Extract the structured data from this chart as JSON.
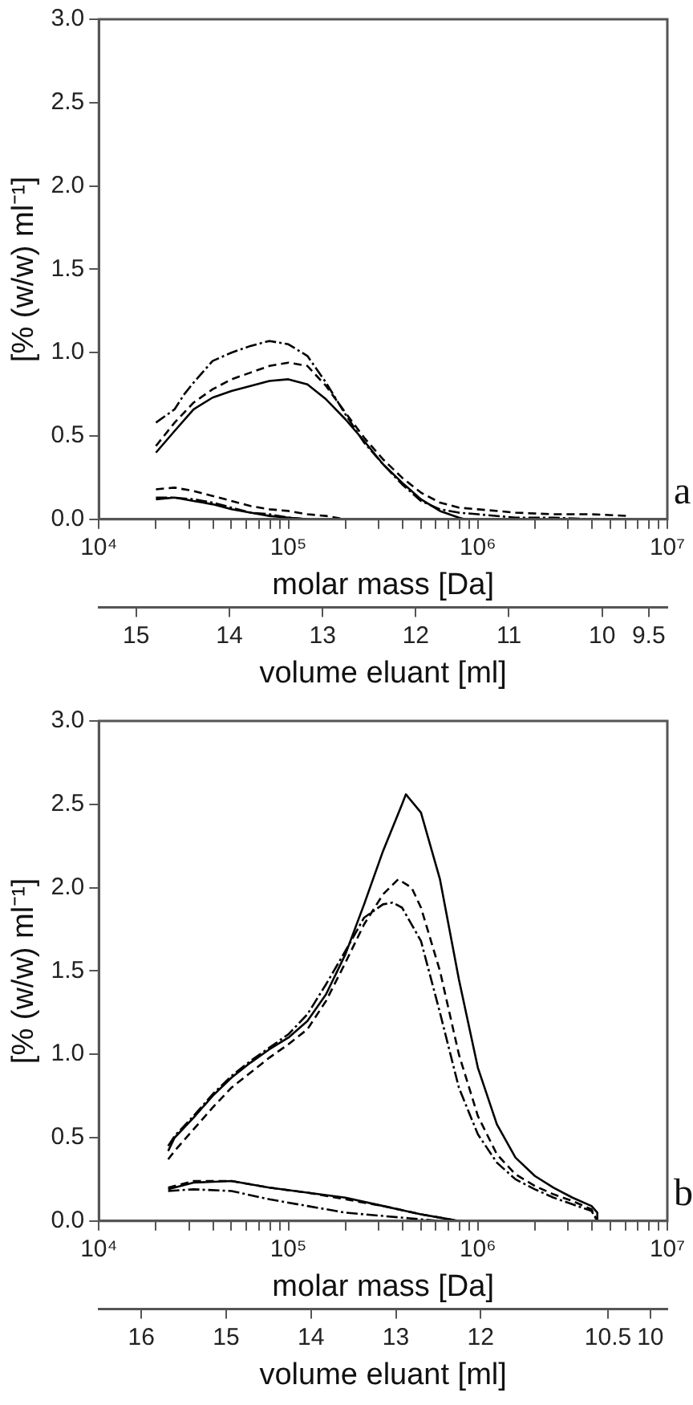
{
  "chart_data": [
    {
      "type": "line",
      "log": "x",
      "xlabel": "molar mass [Da]",
      "ylabel": "[% (w/w) ml⁻¹]",
      "x2label": "volume eluant [ml]",
      "annotations": [
        "a"
      ],
      "xlim": [
        10000,
        10000000
      ],
      "ylim": [
        0,
        3
      ],
      "xticks": [
        {
          "value": 10000,
          "label": "10⁴"
        },
        {
          "value": 20000,
          "label": null
        },
        {
          "value": 30000,
          "label": null
        },
        {
          "value": 40000,
          "label": null
        },
        {
          "value": 50000,
          "label": null
        },
        {
          "value": 60000,
          "label": null
        },
        {
          "value": 70000,
          "label": null
        },
        {
          "value": 80000,
          "label": null
        },
        {
          "value": 90000,
          "label": null
        },
        {
          "value": 100000,
          "label": "10⁵"
        },
        {
          "value": 200000,
          "label": null
        },
        {
          "value": 300000,
          "label": null
        },
        {
          "value": 400000,
          "label": null
        },
        {
          "value": 500000,
          "label": null
        },
        {
          "value": 600000,
          "label": null
        },
        {
          "value": 700000,
          "label": null
        },
        {
          "value": 800000,
          "label": null
        },
        {
          "value": 900000,
          "label": null
        },
        {
          "value": 1000000,
          "label": "10⁶"
        },
        {
          "value": 2000000,
          "label": null
        },
        {
          "value": 3000000,
          "label": null
        },
        {
          "value": 4000000,
          "label": null
        },
        {
          "value": 5000000,
          "label": null
        },
        {
          "value": 6000000,
          "label": null
        },
        {
          "value": 7000000,
          "label": null
        },
        {
          "value": 8000000,
          "label": null
        },
        {
          "value": 9000000,
          "label": null
        },
        {
          "value": 10000000,
          "label": "10⁷"
        }
      ],
      "yticks": [
        {
          "value": 0,
          "label": "0.0"
        },
        {
          "value": 0.5,
          "label": "0.5"
        },
        {
          "value": 1,
          "label": "1.0"
        },
        {
          "value": 1.5,
          "label": "1.5"
        },
        {
          "value": 2,
          "label": "2.0"
        },
        {
          "value": 2.5,
          "label": "2.5"
        },
        {
          "value": 3,
          "label": "3.0"
        }
      ],
      "x2lim": [
        15.4,
        9.3
      ],
      "x2ticks": [
        15,
        14,
        13,
        12,
        11,
        10,
        9.5
      ],
      "series": [
        {
          "color": "#000000",
          "line_style": "solid",
          "x": [
            20000,
            25100,
            31600,
            39800,
            50100,
            63100,
            79400,
            100000,
            126000,
            158000,
            200000,
            251000,
            316000,
            398000,
            501000,
            631000,
            794000,
            851000
          ],
          "values": [
            0.4,
            0.53,
            0.66,
            0.73,
            0.77,
            0.8,
            0.83,
            0.84,
            0.81,
            0.72,
            0.6,
            0.47,
            0.33,
            0.22,
            0.12,
            0.05,
            0.01,
            0
          ]
        },
        {
          "color": "#000000",
          "line_style": "dashed",
          "x": [
            20000,
            25100,
            31600,
            39800,
            50100,
            63100,
            79400,
            100000,
            126000,
            158000,
            200000,
            251000,
            316000,
            398000,
            501000,
            631000,
            794000,
            1000000,
            1580000,
            2510000,
            3980000,
            6310000
          ],
          "values": [
            0.44,
            0.58,
            0.7,
            0.78,
            0.84,
            0.88,
            0.92,
            0.94,
            0.92,
            0.8,
            0.64,
            0.49,
            0.36,
            0.25,
            0.16,
            0.1,
            0.07,
            0.06,
            0.04,
            0.03,
            0.03,
            0.02
          ]
        },
        {
          "color": "#000000",
          "line_style": "dashdot",
          "x": [
            20000,
            25100,
            28200,
            31600,
            39800,
            50100,
            63100,
            79400,
            100000,
            126000,
            158000,
            200000,
            251000,
            316000,
            398000,
            501000,
            631000,
            794000,
            1000000,
            1580000,
            2510000,
            3980000,
            6310000
          ],
          "values": [
            0.58,
            0.66,
            0.75,
            0.82,
            0.95,
            1.0,
            1.04,
            1.07,
            1.05,
            0.98,
            0.82,
            0.63,
            0.46,
            0.33,
            0.21,
            0.11,
            0.06,
            0.04,
            0.03,
            0.01,
            0.01,
            0,
            0
          ]
        },
        {
          "color": "#000000",
          "line_style": "dashed",
          "x": [
            20000,
            25100,
            31600,
            39800,
            50100,
            63100,
            79400,
            100000,
            126000,
            158000,
            200000
          ],
          "values": [
            0.18,
            0.19,
            0.17,
            0.14,
            0.11,
            0.08,
            0.06,
            0.05,
            0.03,
            0.02,
            0
          ]
        },
        {
          "color": "#000000",
          "line_style": "dashdot",
          "x": [
            20000,
            25100,
            31600,
            39800,
            50100,
            63100,
            79400,
            100000,
            126000
          ],
          "values": [
            0.13,
            0.13,
            0.12,
            0.1,
            0.07,
            0.04,
            0.03,
            0.01,
            0
          ]
        },
        {
          "color": "#000000",
          "line_style": "solid",
          "x": [
            20000,
            25100,
            31600,
            39800,
            50100,
            63100,
            79400,
            100000,
            126000
          ],
          "values": [
            0.12,
            0.13,
            0.11,
            0.09,
            0.06,
            0.04,
            0.02,
            0.01,
            0
          ]
        }
      ]
    },
    {
      "type": "line",
      "log": "x",
      "xlabel": "molar mass [Da]",
      "ylabel": "[% (w/w) ml⁻¹]",
      "x2label": "volume eluant [ml]",
      "annotations": [
        "b"
      ],
      "xlim": [
        10000,
        10000000
      ],
      "ylim": [
        0,
        3
      ],
      "xticks": [
        {
          "value": 10000,
          "label": "10⁴"
        },
        {
          "value": 20000,
          "label": null
        },
        {
          "value": 30000,
          "label": null
        },
        {
          "value": 40000,
          "label": null
        },
        {
          "value": 50000,
          "label": null
        },
        {
          "value": 60000,
          "label": null
        },
        {
          "value": 70000,
          "label": null
        },
        {
          "value": 80000,
          "label": null
        },
        {
          "value": 90000,
          "label": null
        },
        {
          "value": 100000,
          "label": "10⁵"
        },
        {
          "value": 200000,
          "label": null
        },
        {
          "value": 300000,
          "label": null
        },
        {
          "value": 400000,
          "label": null
        },
        {
          "value": 500000,
          "label": null
        },
        {
          "value": 600000,
          "label": null
        },
        {
          "value": 700000,
          "label": null
        },
        {
          "value": 800000,
          "label": null
        },
        {
          "value": 900000,
          "label": null
        },
        {
          "value": 1000000,
          "label": "10⁶"
        },
        {
          "value": 2000000,
          "label": null
        },
        {
          "value": 3000000,
          "label": null
        },
        {
          "value": 4000000,
          "label": null
        },
        {
          "value": 5000000,
          "label": null
        },
        {
          "value": 6000000,
          "label": null
        },
        {
          "value": 7000000,
          "label": null
        },
        {
          "value": 8000000,
          "label": null
        },
        {
          "value": 9000000,
          "label": null
        },
        {
          "value": 10000000,
          "label": "10⁷"
        }
      ],
      "yticks": [
        {
          "value": 0,
          "label": "0.0"
        },
        {
          "value": 0.5,
          "label": "0.5"
        },
        {
          "value": 1,
          "label": "1.0"
        },
        {
          "value": 1.5,
          "label": "1.5"
        },
        {
          "value": 2,
          "label": "2.0"
        },
        {
          "value": 2.5,
          "label": "2.5"
        },
        {
          "value": 3,
          "label": "3.0"
        }
      ],
      "x2lim": [
        16.5,
        9.8
      ],
      "x2ticks": [
        16,
        15,
        14,
        13,
        12,
        10.5,
        10
      ],
      "series": [
        {
          "color": "#000000",
          "line_style": "solid",
          "x": [
            23200,
            25100,
            31600,
            39800,
            50100,
            63100,
            79400,
            100000,
            126000,
            158000,
            200000,
            251000,
            316000,
            398000,
            417000,
            501000,
            631000,
            794000,
            1000000,
            1260000,
            1580000,
            2000000,
            2510000,
            3160000,
            3980000,
            4270000,
            4270000
          ],
          "values": [
            0.42,
            0.5,
            0.62,
            0.75,
            0.86,
            0.95,
            1.03,
            1.1,
            1.2,
            1.36,
            1.6,
            1.9,
            2.22,
            2.5,
            2.56,
            2.45,
            2.05,
            1.45,
            0.92,
            0.58,
            0.38,
            0.27,
            0.2,
            0.14,
            0.09,
            0.05,
            0
          ]
        },
        {
          "color": "#000000",
          "line_style": "dashed",
          "x": [
            23200,
            25100,
            31600,
            39800,
            50100,
            63100,
            79400,
            100000,
            126000,
            158000,
            200000,
            251000,
            316000,
            380000,
            447000,
            501000,
            631000,
            794000,
            1000000,
            1260000,
            1580000,
            2000000,
            2510000,
            3160000,
            3980000,
            4270000
          ],
          "values": [
            0.37,
            0.42,
            0.55,
            0.68,
            0.8,
            0.89,
            0.98,
            1.06,
            1.15,
            1.32,
            1.55,
            1.78,
            1.96,
            2.05,
            2.0,
            1.88,
            1.5,
            1.0,
            0.63,
            0.4,
            0.28,
            0.21,
            0.16,
            0.12,
            0.07,
            0
          ]
        },
        {
          "color": "#000000",
          "line_style": "dashdot",
          "x": [
            23200,
            25100,
            31600,
            39800,
            50100,
            63100,
            79400,
            100000,
            126000,
            158000,
            200000,
            251000,
            316000,
            355000,
            398000,
            501000,
            631000,
            794000,
            1000000,
            1260000,
            1580000,
            2000000,
            2510000,
            3160000,
            3980000,
            4270000
          ],
          "values": [
            0.45,
            0.51,
            0.63,
            0.76,
            0.87,
            0.96,
            1.04,
            1.12,
            1.24,
            1.42,
            1.62,
            1.82,
            1.9,
            1.91,
            1.88,
            1.68,
            1.25,
            0.8,
            0.52,
            0.35,
            0.25,
            0.19,
            0.14,
            0.1,
            0.06,
            0
          ]
        },
        {
          "color": "#000000",
          "line_style": "dashed",
          "x": [
            23200,
            31600,
            50100,
            79400,
            126000,
            200000,
            316000,
            501000,
            631000,
            794000
          ],
          "values": [
            0.2,
            0.24,
            0.24,
            0.2,
            0.17,
            0.13,
            0.09,
            0.04,
            0.02,
            0
          ]
        },
        {
          "color": "#000000",
          "line_style": "solid",
          "x": [
            23200,
            31600,
            50100,
            79400,
            126000,
            200000,
            316000,
            501000,
            631000,
            794000
          ],
          "values": [
            0.19,
            0.23,
            0.24,
            0.2,
            0.17,
            0.14,
            0.09,
            0.04,
            0.02,
            0
          ]
        },
        {
          "color": "#000000",
          "line_style": "dashdot",
          "x": [
            23200,
            31600,
            50100,
            79400,
            126000,
            200000,
            316000,
            501000,
            631000
          ],
          "values": [
            0.18,
            0.19,
            0.18,
            0.13,
            0.09,
            0.05,
            0.03,
            0.01,
            0
          ]
        }
      ]
    }
  ]
}
